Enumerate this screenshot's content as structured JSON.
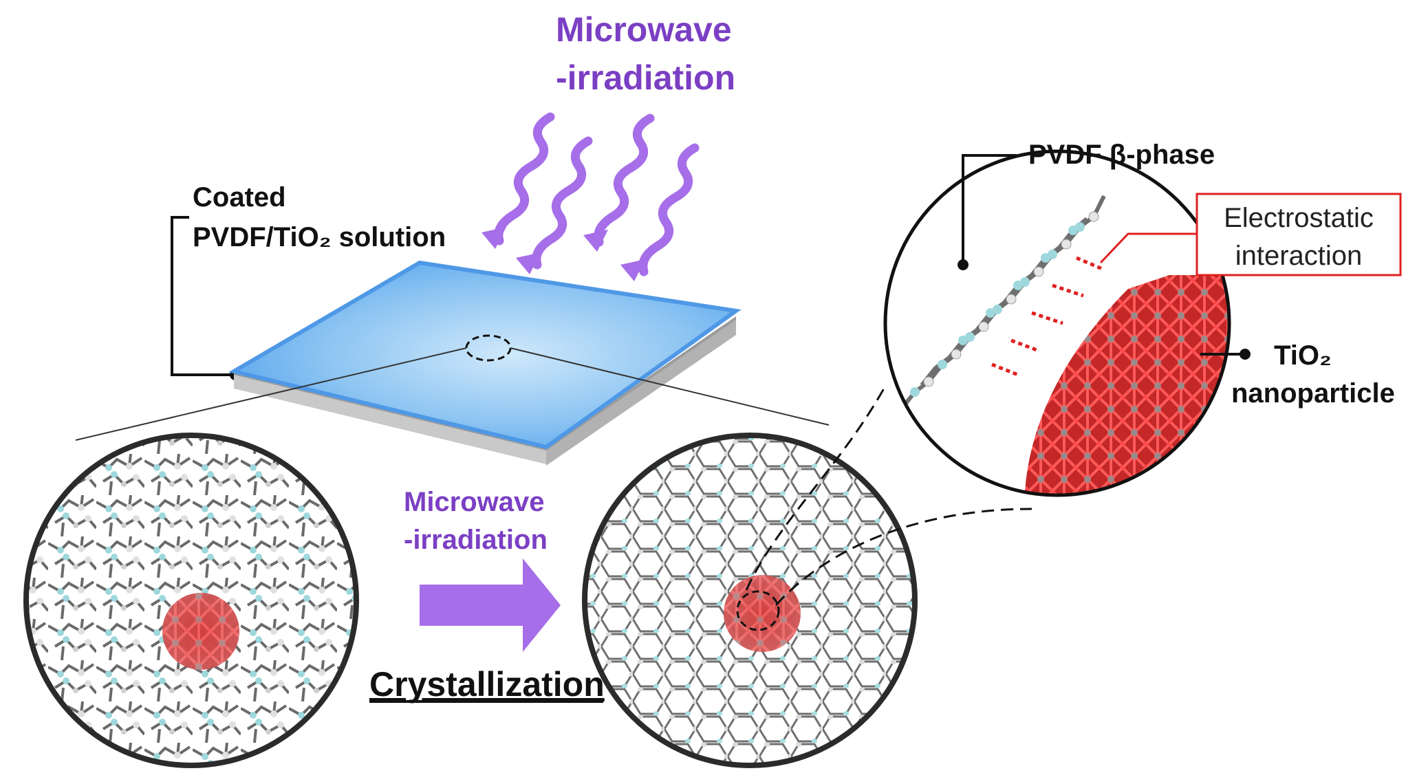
{
  "labels": {
    "microwave_top_line1": "Microwave",
    "microwave_top_line2": "-irradiation",
    "coated_line1": "Coated",
    "coated_line2": "PVDF/TiO₂ solution",
    "microwave_mid_line1": "Microwave",
    "microwave_mid_line2": "-irradiation",
    "crystallization": "Crystallization",
    "pvdf_beta": "PVDF β-phase",
    "electrostatic_line1": "Electrostatic",
    "electrostatic_line2": "interaction",
    "tio2_line1": "TiO₂",
    "tio2_line2": "nanoparticle"
  },
  "colors": {
    "microwave_purple": "#a66ee8",
    "label_purple": "#7b3fc4",
    "film_blue": "#5aa7ee",
    "substrate_gray": "#c8c8c8",
    "tio2_red": "#d63838",
    "fluorine_cyan": "#8fd3d8",
    "carbon_gray": "#707070",
    "callout_red": "#e02020"
  },
  "icons": [
    "wavy-arrow-icon",
    "block-arrow-icon"
  ]
}
